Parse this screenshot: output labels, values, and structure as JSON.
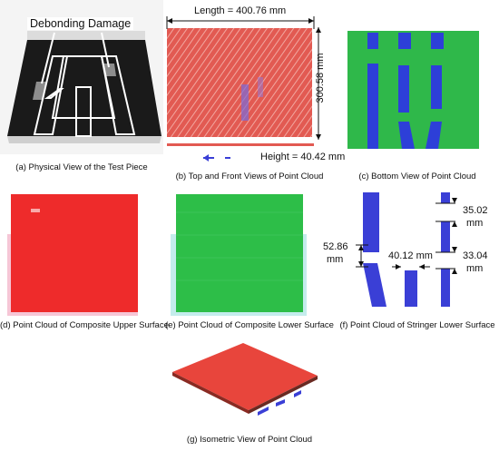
{
  "panels": {
    "a": {
      "caption": "(a) Physical View of the Test Piece",
      "label": "Debonding Damage"
    },
    "b": {
      "caption": "(b) Top and Front Views of Point Cloud",
      "length": "Length = 400.76 mm",
      "height_side": "300.58 mm",
      "height_front": "Height = 40.42 mm"
    },
    "c": {
      "caption": "(c) Bottom View of Point Cloud"
    },
    "d": {
      "caption": "(d) Point Cloud of Composite Upper Surface"
    },
    "e": {
      "caption": "(e) Point Cloud of Composite Lower Surface"
    },
    "f": {
      "caption": "(f) Point Cloud of Stringer Lower Surface",
      "dim_left": [
        "52.86",
        "mm"
      ],
      "dim_mid": "40.12 mm",
      "dim_top": [
        "35.02",
        "mm"
      ],
      "dim_bottom": [
        "33.04",
        "mm"
      ]
    },
    "g": {
      "caption": "(g) Isometric View of Point Cloud"
    }
  },
  "colors": {
    "composite_upper": "#e8453c",
    "composite_lower": "#2fb84a",
    "stringer": "#3a3fd6",
    "physical_dark": "#111111"
  }
}
